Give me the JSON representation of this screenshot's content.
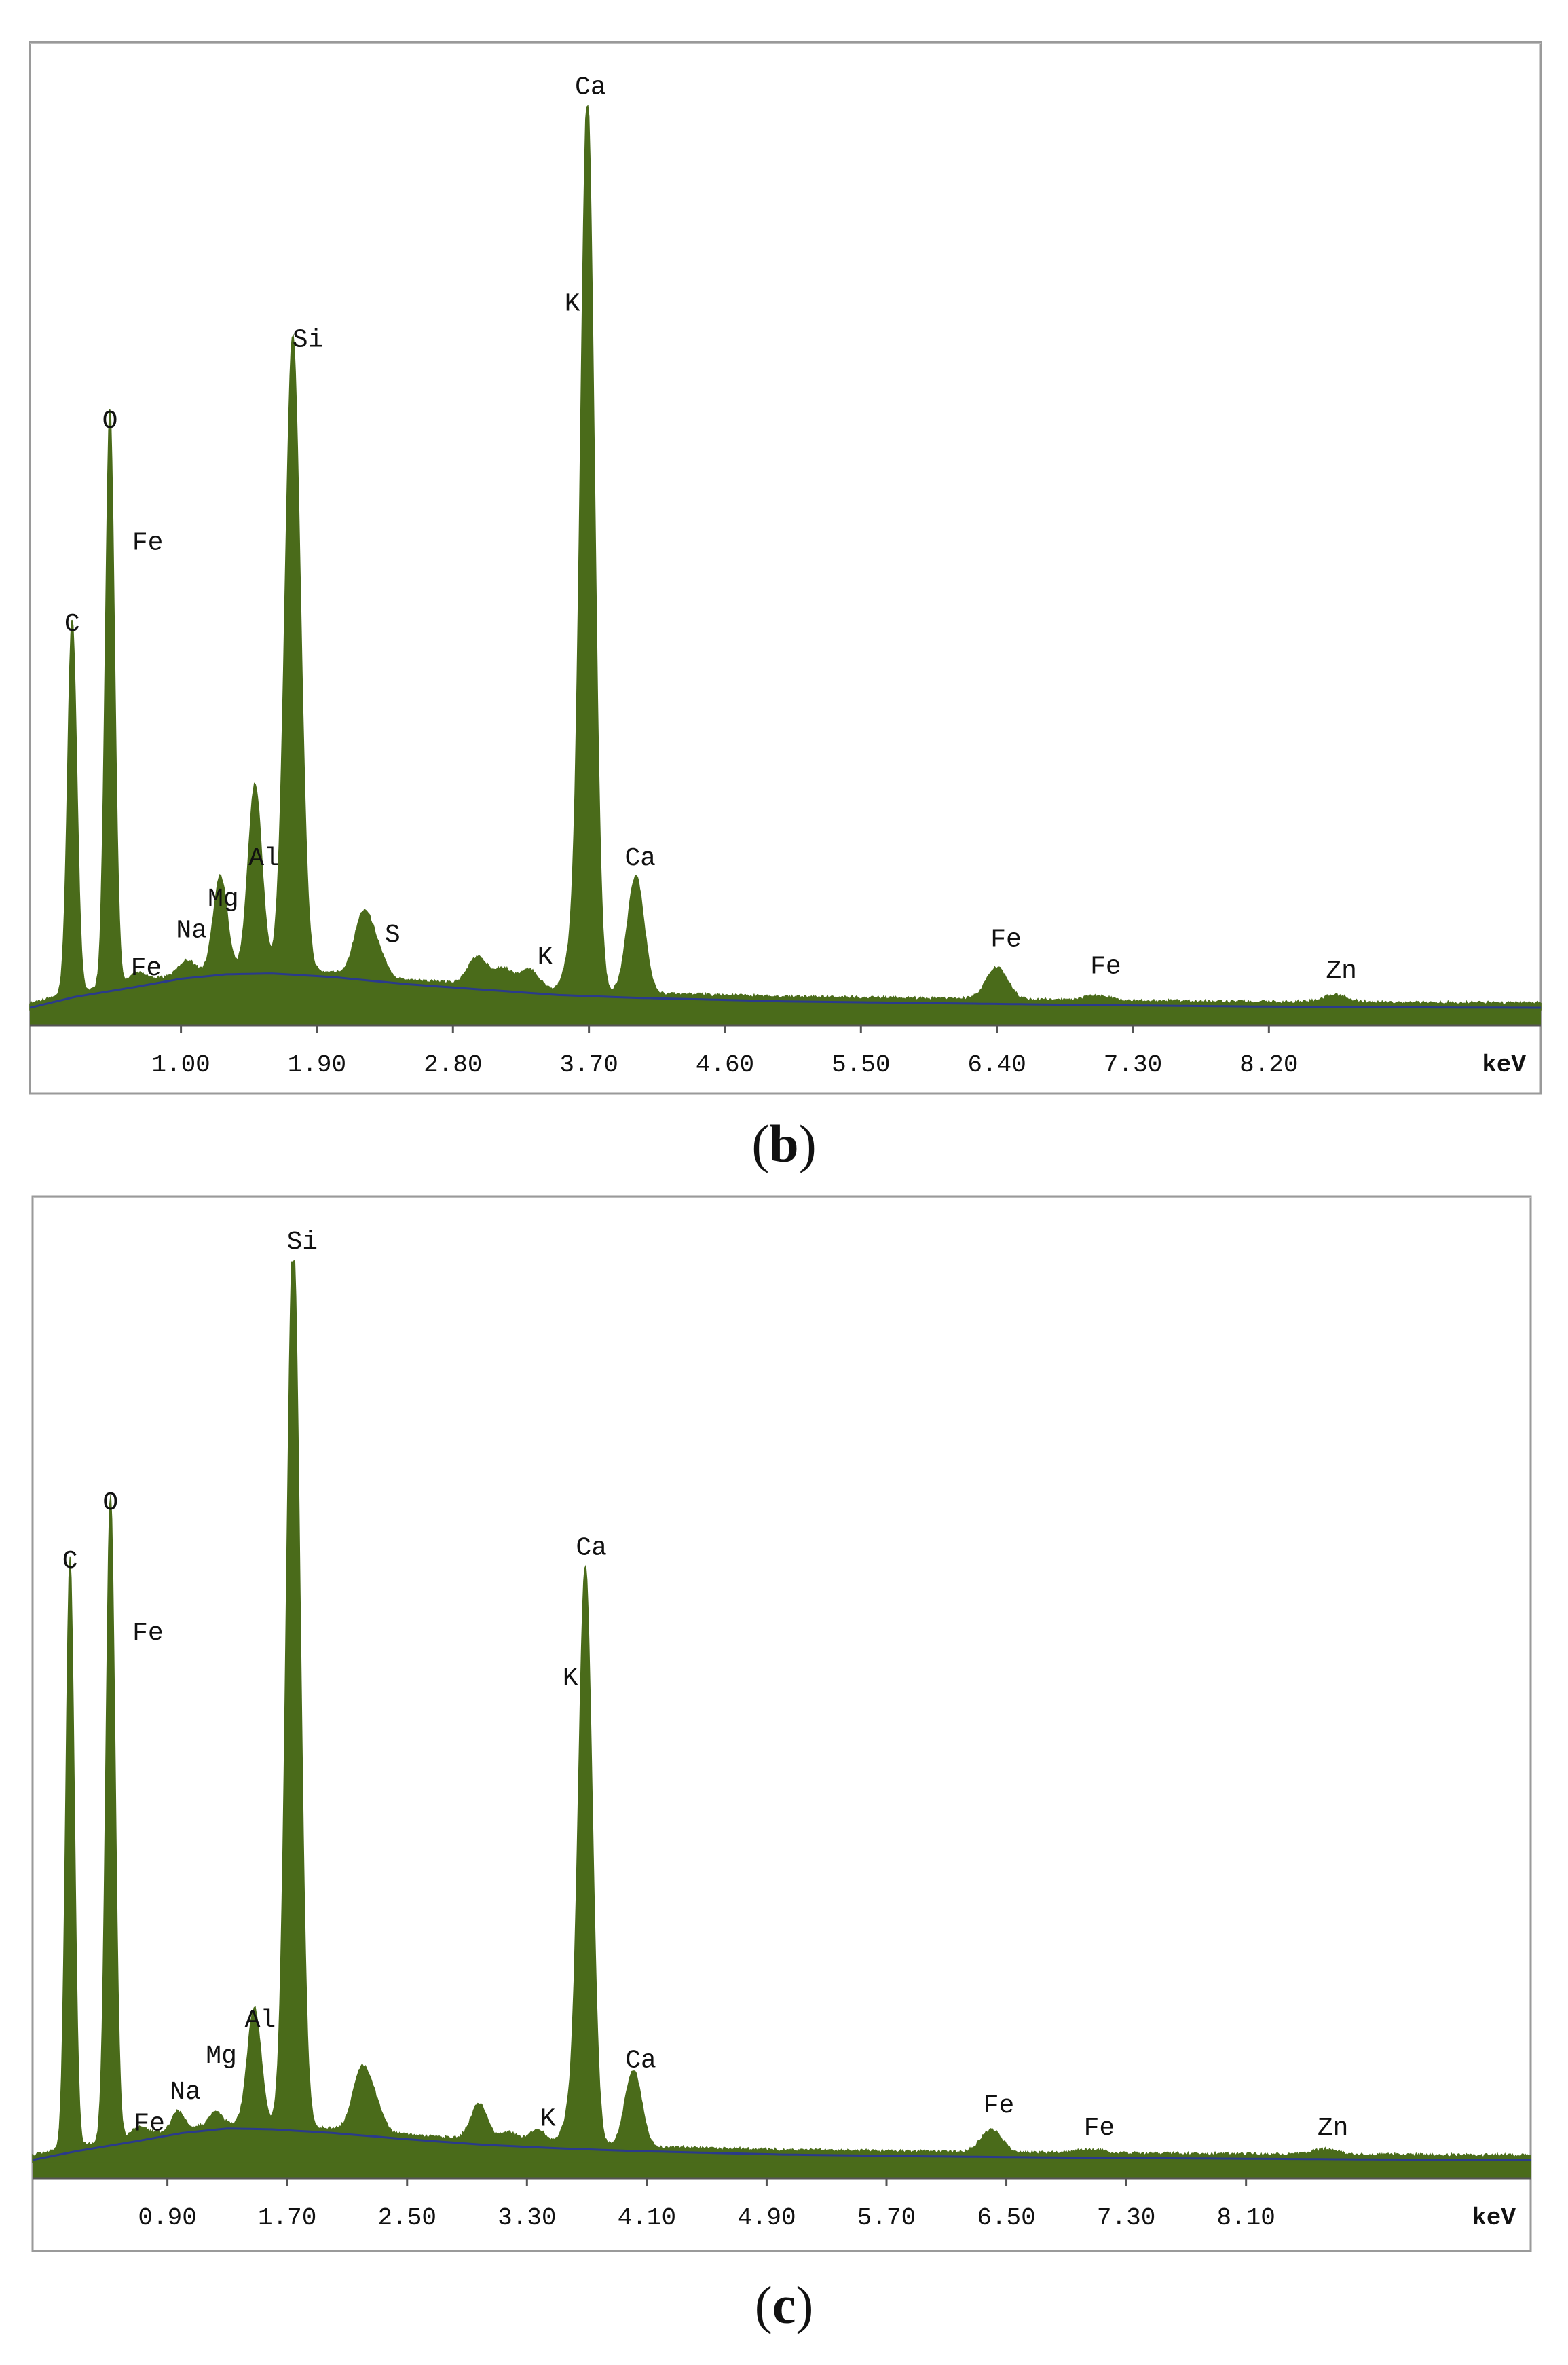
{
  "chart_data": [
    {
      "type": "area",
      "panel_caption": {
        "open": "(",
        "letter": "b",
        "close": ")"
      },
      "xlabel": "keV",
      "x_range_kev": [
        0.0,
        10.0
      ],
      "x_ticks": [
        1.0,
        1.9,
        2.8,
        3.7,
        4.6,
        5.5,
        6.4,
        7.3,
        8.2
      ],
      "y_range": [
        0,
        100
      ],
      "grid": false,
      "fill_color": "#4a6b1a",
      "background_line_color": "#2a3a8c",
      "peaks": [
        {
          "x": 0.28,
          "h": 41.5,
          "w": 0.03
        },
        {
          "x": 0.53,
          "h": 64.0,
          "w": 0.03
        },
        {
          "x": 0.71,
          "h": 1.0,
          "w": 0.05
        },
        {
          "x": 1.04,
          "h": 1.5,
          "w": 0.05
        },
        {
          "x": 1.26,
          "h": 10.5,
          "w": 0.045
        },
        {
          "x": 1.49,
          "h": 20.5,
          "w": 0.045
        },
        {
          "x": 1.74,
          "h": 70.5,
          "w": 0.05
        },
        {
          "x": 2.21,
          "h": 7.0,
          "w": 0.06
        },
        {
          "x": 2.31,
          "h": 2.0,
          "w": 0.05
        },
        {
          "x": 2.96,
          "h": 3.0,
          "w": 0.06
        },
        {
          "x": 3.13,
          "h": 2.0,
          "w": 0.07
        },
        {
          "x": 3.31,
          "h": 2.0,
          "w": 0.06
        },
        {
          "x": 3.59,
          "h": 4.0,
          "w": 0.05
        },
        {
          "x": 3.69,
          "h": 99.0,
          "w": 0.045
        },
        {
          "x": 4.01,
          "h": 13.0,
          "w": 0.055
        },
        {
          "x": 6.4,
          "h": 3.5,
          "w": 0.07
        },
        {
          "x": 7.06,
          "h": 0.5,
          "w": 0.08
        },
        {
          "x": 8.64,
          "h": 0.8,
          "w": 0.08
        }
      ],
      "background_curve": [
        [
          0.0,
          0.3
        ],
        [
          0.3,
          1.5
        ],
        [
          0.7,
          2.6
        ],
        [
          1.0,
          3.5
        ],
        [
          1.3,
          4.0
        ],
        [
          1.6,
          4.1
        ],
        [
          2.0,
          3.7
        ],
        [
          2.5,
          2.9
        ],
        [
          3.0,
          2.3
        ],
        [
          3.5,
          1.7
        ],
        [
          4.0,
          1.4
        ],
        [
          5.0,
          1.0
        ],
        [
          6.0,
          0.8
        ],
        [
          7.0,
          0.6
        ],
        [
          8.0,
          0.45
        ],
        [
          9.0,
          0.35
        ],
        [
          10.0,
          0.3
        ]
      ],
      "labels": [
        {
          "text": "C",
          "x": 0.28,
          "y": 41.5
        },
        {
          "text": "O",
          "x": 0.53,
          "y": 64.0
        },
        {
          "text": "Fe",
          "x": 0.78,
          "y": 50.5
        },
        {
          "text": "Fe",
          "x": 0.77,
          "y": 3.3
        },
        {
          "text": "Na",
          "x": 1.07,
          "y": 7.5
        },
        {
          "text": "Mg",
          "x": 1.28,
          "y": 11.0
        },
        {
          "text": "Al",
          "x": 1.55,
          "y": 15.5
        },
        {
          "text": "Si",
          "x": 1.84,
          "y": 73.0
        },
        {
          "text": "S",
          "x": 2.4,
          "y": 7.0
        },
        {
          "text": "K",
          "x": 3.41,
          "y": 4.5
        },
        {
          "text": "K",
          "x": 3.59,
          "y": 77.0
        },
        {
          "text": "Ca",
          "x": 3.71,
          "y": 101.0
        },
        {
          "text": "Ca",
          "x": 4.04,
          "y": 15.5
        },
        {
          "text": "Fe",
          "x": 6.46,
          "y": 6.5
        },
        {
          "text": "Fe",
          "x": 7.12,
          "y": 3.5
        },
        {
          "text": "Zn",
          "x": 8.68,
          "y": 3.0
        }
      ]
    },
    {
      "type": "area",
      "panel_caption": {
        "open": "(",
        "letter": "c",
        "close": ")"
      },
      "xlabel": "keV",
      "x_range_kev": [
        0.0,
        10.0
      ],
      "x_ticks": [
        0.9,
        1.7,
        2.5,
        3.3,
        4.1,
        4.9,
        5.7,
        6.5,
        7.3,
        8.1
      ],
      "y_range": [
        0,
        100
      ],
      "grid": false,
      "fill_color": "#4a6b1a",
      "background_line_color": "#2a3a8c",
      "peaks": [
        {
          "x": 0.25,
          "h": 65.5,
          "w": 0.028
        },
        {
          "x": 0.52,
          "h": 72.0,
          "w": 0.03
        },
        {
          "x": 0.71,
          "h": 1.0,
          "w": 0.05
        },
        {
          "x": 0.97,
          "h": 2.0,
          "w": 0.04
        },
        {
          "x": 1.22,
          "h": 1.5,
          "w": 0.04
        },
        {
          "x": 1.48,
          "h": 13.0,
          "w": 0.045
        },
        {
          "x": 1.74,
          "h": 99.0,
          "w": 0.045
        },
        {
          "x": 2.2,
          "h": 7.0,
          "w": 0.06
        },
        {
          "x": 2.3,
          "h": 2.0,
          "w": 0.05
        },
        {
          "x": 2.98,
          "h": 4.0,
          "w": 0.055
        },
        {
          "x": 3.18,
          "h": 1.0,
          "w": 0.06
        },
        {
          "x": 3.37,
          "h": 1.5,
          "w": 0.05
        },
        {
          "x": 3.59,
          "h": 3.0,
          "w": 0.05
        },
        {
          "x": 3.69,
          "h": 64.0,
          "w": 0.045
        },
        {
          "x": 4.01,
          "h": 8.5,
          "w": 0.055
        },
        {
          "x": 6.4,
          "h": 2.5,
          "w": 0.07
        },
        {
          "x": 7.06,
          "h": 0.4,
          "w": 0.08
        },
        {
          "x": 8.63,
          "h": 0.6,
          "w": 0.08
        }
      ],
      "background_curve": [
        [
          0.0,
          0.3
        ],
        [
          0.3,
          1.3
        ],
        [
          0.7,
          2.4
        ],
        [
          1.0,
          3.3
        ],
        [
          1.3,
          3.8
        ],
        [
          1.6,
          3.7
        ],
        [
          2.0,
          3.3
        ],
        [
          2.5,
          2.6
        ],
        [
          3.0,
          2.0
        ],
        [
          3.5,
          1.6
        ],
        [
          4.0,
          1.3
        ],
        [
          5.0,
          0.9
        ],
        [
          6.0,
          0.7
        ],
        [
          7.0,
          0.55
        ],
        [
          8.0,
          0.45
        ],
        [
          9.0,
          0.35
        ],
        [
          10.0,
          0.3
        ]
      ],
      "labels": [
        {
          "text": "C",
          "x": 0.25,
          "y": 65.5
        },
        {
          "text": "O",
          "x": 0.52,
          "y": 72.0
        },
        {
          "text": "Fe",
          "x": 0.77,
          "y": 57.5
        },
        {
          "text": "Fe",
          "x": 0.78,
          "y": 3.0
        },
        {
          "text": "Na",
          "x": 1.02,
          "y": 6.5
        },
        {
          "text": "Mg",
          "x": 1.26,
          "y": 10.5
        },
        {
          "text": "Al",
          "x": 1.52,
          "y": 14.5
        },
        {
          "text": "Si",
          "x": 1.8,
          "y": 101.0
        },
        {
          "text": "K",
          "x": 3.44,
          "y": 3.5
        },
        {
          "text": "K",
          "x": 3.59,
          "y": 52.5
        },
        {
          "text": "Ca",
          "x": 3.73,
          "y": 67.0
        },
        {
          "text": "Ca",
          "x": 4.06,
          "y": 10.0
        },
        {
          "text": "Fe",
          "x": 6.45,
          "y": 5.0
        },
        {
          "text": "Fe",
          "x": 7.12,
          "y": 2.5
        },
        {
          "text": "Zn",
          "x": 8.68,
          "y": 2.5
        }
      ]
    }
  ]
}
